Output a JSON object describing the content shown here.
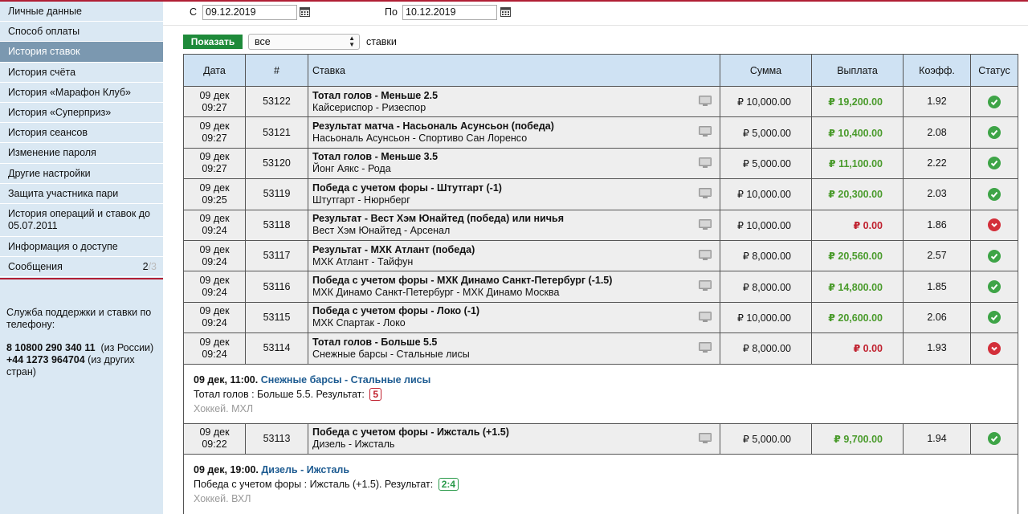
{
  "sidebar": {
    "items": [
      {
        "label": "Личные данные",
        "active": false
      },
      {
        "label": "Способ оплаты",
        "active": false
      },
      {
        "label": "История ставок",
        "active": true
      },
      {
        "label": "История счёта",
        "active": false
      },
      {
        "label": "История «Марафон Клуб»",
        "active": false
      },
      {
        "label": "История «Суперприз»",
        "active": false
      },
      {
        "label": "История сеансов",
        "active": false
      },
      {
        "label": "Изменение пароля",
        "active": false
      },
      {
        "label": "Другие настройки",
        "active": false
      },
      {
        "label": "Защита участника пари",
        "active": false
      },
      {
        "label": "История операций и ставок до 05.07.2011",
        "active": false
      },
      {
        "label": "Информация о доступе",
        "active": false
      }
    ],
    "messages": {
      "label": "Сообщения",
      "count": "2",
      "count_total": "/3"
    },
    "support": {
      "title": "Служба поддержки и ставки по телефону:",
      "phone1": "8 10800 290 340 11",
      "phone1_note": "(из России)",
      "phone2": "+44 1273 964704",
      "phone2_note": "(из других стран)"
    }
  },
  "filters": {
    "from_label": "С",
    "from_value": "09.12.2019",
    "to_label": "По",
    "to_value": "10.12.2019"
  },
  "controls": {
    "show_button": "Показать",
    "select_value": "все",
    "select_suffix": "ставки"
  },
  "table": {
    "headers": {
      "date": "Дата",
      "num": "#",
      "bet": "Ставка",
      "sum": "Сумма",
      "payout": "Выплата",
      "coef": "Коэфф.",
      "status": "Статус"
    },
    "rows": [
      {
        "date": "09 дек",
        "time": "09:27",
        "num": "53122",
        "title": "Тотал голов - Меньше 2.5",
        "event": "Кайсериспор - Ризеспор",
        "sum": "₽ 10,000.00",
        "payout": "₽ 19,200.00",
        "coef": "1.92",
        "result": "win"
      },
      {
        "date": "09 дек",
        "time": "09:27",
        "num": "53121",
        "title": "Результат матча - Насьональ Асунсьон (победа)",
        "event": "Насьональ Асунсьон - Спортиво Сан Лоренсо",
        "sum": "₽ 5,000.00",
        "payout": "₽ 10,400.00",
        "coef": "2.08",
        "result": "win"
      },
      {
        "date": "09 дек",
        "time": "09:27",
        "num": "53120",
        "title": "Тотал голов - Меньше 3.5",
        "event": "Йонг Аякс - Рода",
        "sum": "₽ 5,000.00",
        "payout": "₽ 11,100.00",
        "coef": "2.22",
        "result": "win"
      },
      {
        "date": "09 дек",
        "time": "09:25",
        "num": "53119",
        "title": "Победа с учетом форы - Штутгарт (-1)",
        "event": "Штутгарт - Нюрнберг",
        "sum": "₽ 10,000.00",
        "payout": "₽ 20,300.00",
        "coef": "2.03",
        "result": "win"
      },
      {
        "date": "09 дек",
        "time": "09:24",
        "num": "53118",
        "title": "Результат - Вест Хэм Юнайтед (победа) или ничья",
        "event": "Вест Хэм Юнайтед - Арсенал",
        "sum": "₽ 10,000.00",
        "payout": "₽ 0.00",
        "coef": "1.86",
        "result": "lose"
      },
      {
        "date": "09 дек",
        "time": "09:24",
        "num": "53117",
        "title": "Результат - МХК Атлант (победа)",
        "event": "МХК Атлант - Тайфун",
        "sum": "₽ 8,000.00",
        "payout": "₽ 20,560.00",
        "coef": "2.57",
        "result": "win"
      },
      {
        "date": "09 дек",
        "time": "09:24",
        "num": "53116",
        "title": "Победа с учетом форы - МХК Динамо Санкт-Петербург (-1.5)",
        "event": "МХК Динамо Санкт-Петербург - МХК Динамо Москва",
        "sum": "₽ 8,000.00",
        "payout": "₽ 14,800.00",
        "coef": "1.85",
        "result": "win"
      },
      {
        "date": "09 дек",
        "time": "09:24",
        "num": "53115",
        "title": "Победа с учетом форы - Локо (-1)",
        "event": "МХК Спартак - Локо",
        "sum": "₽ 10,000.00",
        "payout": "₽ 20,600.00",
        "coef": "2.06",
        "result": "win"
      },
      {
        "date": "09 дек",
        "time": "09:24",
        "num": "53114",
        "title": "Тотал голов - Больше 5.5",
        "event": "Снежные барсы - Стальные лисы",
        "sum": "₽ 8,000.00",
        "payout": "₽ 0.00",
        "coef": "1.93",
        "result": "lose"
      },
      {
        "date": "09 дек",
        "time": "09:22",
        "num": "53113",
        "title": "Победа с учетом форы - Ижсталь (+1.5)",
        "event": "Дизель - Ижсталь",
        "sum": "₽ 5,000.00",
        "payout": "₽ 9,700.00",
        "coef": "1.94",
        "result": "win"
      }
    ],
    "details": [
      {
        "datetime": "09 дек, 11:00.",
        "event": "Снежные барсы - Стальные лисы",
        "line": "Тотал голов : Больше 5.5. Результат:",
        "score": "5",
        "sport": "Хоккей. МХЛ"
      },
      {
        "datetime": "09 дек, 19:00.",
        "event": "Дизель - Ижсталь",
        "line": "Победа с учетом форы : Ижсталь (+1.5). Результат:",
        "score": "2:4",
        "sport": "Хоккей. ВХЛ"
      }
    ]
  },
  "colors": {
    "accent_red": "#b01e34",
    "sidebar_bg": "#dae8f3",
    "active_item": "#7b98b0",
    "win_green": "#4a9b2c",
    "lose_red": "#c0202e",
    "header_bg": "#cfe2f3",
    "button_green": "#1e8a3a"
  }
}
